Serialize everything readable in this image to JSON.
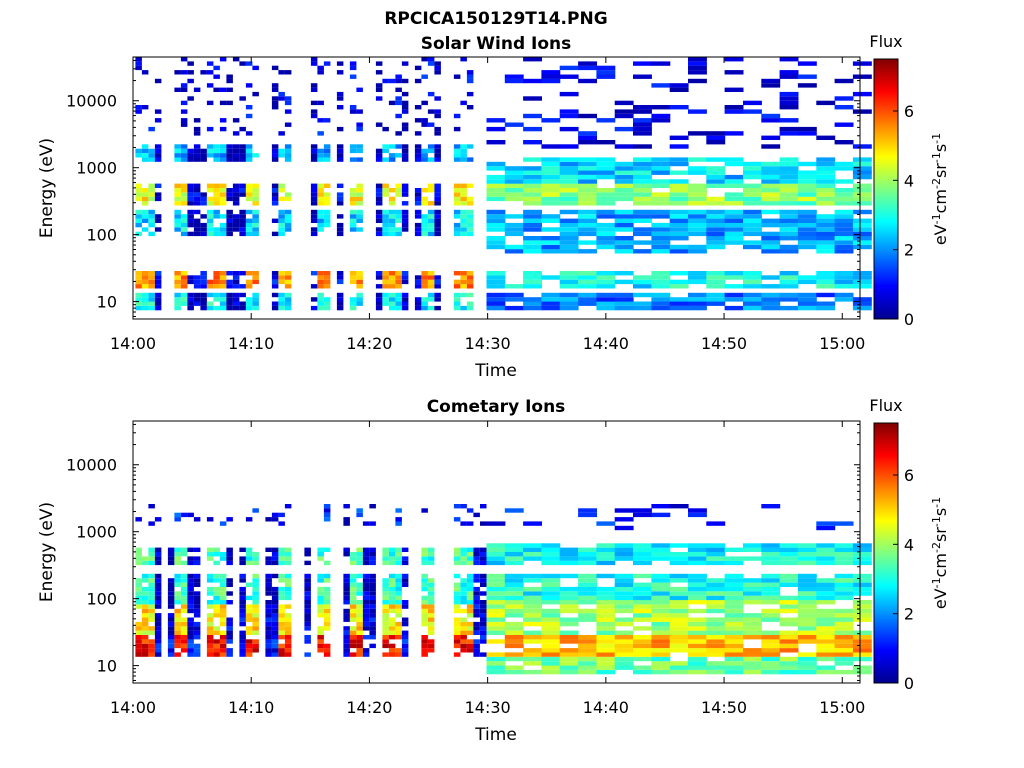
{
  "figure_title": "RPCICA150129T14.PNG",
  "colormap": [
    "#00008f",
    "#0000ff",
    "#0080ff",
    "#00ffff",
    "#80ff80",
    "#ffff00",
    "#ff8000",
    "#ff0000",
    "#800000"
  ],
  "chart_data": [
    {
      "type": "heatmap",
      "title": "Solar Wind Ions",
      "xlabel": "Time",
      "ylabel": "Energy (eV)",
      "x_ticks": [
        "14:00",
        "14:10",
        "14:20",
        "14:30",
        "14:40",
        "14:50",
        "15:00"
      ],
      "x_range_minutes": [
        0,
        61.5
      ],
      "y_scale": "log",
      "y_ticks": [
        10,
        100,
        1000,
        10000
      ],
      "y_tick_labels": [
        "10",
        "100",
        "1000",
        "10000"
      ],
      "y_range": [
        5.5,
        45000
      ],
      "colorbar": {
        "label": "Flux",
        "unit": "eV-1cm-2sr-1s-1",
        "range": [
          0,
          7.5
        ],
        "ticks": [
          "0",
          "2",
          "4",
          "6"
        ]
      },
      "bands_before_1430": [
        {
          "energy": [
            16,
            30
          ],
          "flux": 5.5,
          "intensity": "high"
        },
        {
          "energy": [
            8,
            14
          ],
          "flux": 2.8
        },
        {
          "energy": [
            280,
            600
          ],
          "flux": 4.6
        },
        {
          "energy": [
            100,
            250
          ],
          "flux": 2.6
        },
        {
          "energy": [
            1200,
            2200
          ],
          "flux": 2.3
        },
        {
          "energy": [
            3000,
            45000
          ],
          "flux": 0.8,
          "note": "sparse"
        }
      ],
      "bands_after_1430": [
        {
          "energy": [
            16,
            30
          ],
          "flux": 2.8
        },
        {
          "energy": [
            8,
            14
          ],
          "flux": 1.8
        },
        {
          "energy": [
            280,
            600
          ],
          "flux": 3.8
        },
        {
          "energy": [
            600,
            1400
          ],
          "flux": 2.5
        },
        {
          "energy": [
            50,
            250
          ],
          "flux": 2.2
        },
        {
          "energy": [
            2000,
            45000
          ],
          "flux": 0.7,
          "note": "striped"
        }
      ],
      "grid": false
    },
    {
      "type": "heatmap",
      "title": "Cometary Ions",
      "xlabel": "Time",
      "ylabel": "Energy (eV)",
      "x_ticks": [
        "14:00",
        "14:10",
        "14:20",
        "14:30",
        "14:40",
        "14:50",
        "15:00"
      ],
      "x_range_minutes": [
        0,
        61.5
      ],
      "y_scale": "log",
      "y_ticks": [
        10,
        100,
        1000,
        10000
      ],
      "y_tick_labels": [
        "10",
        "100",
        "1000",
        "10000"
      ],
      "y_range": [
        5.5,
        45000
      ],
      "colorbar": {
        "label": "Flux",
        "unit": "eV-1cm-2sr-1s-1",
        "range": [
          0,
          7.5
        ],
        "ticks": [
          "0",
          "2",
          "4",
          "6"
        ]
      },
      "bands_before_1430": [
        {
          "energy": [
            14,
            30
          ],
          "flux": 6.5,
          "intensity": "high"
        },
        {
          "energy": [
            30,
            80
          ],
          "flux": 4.8
        },
        {
          "energy": [
            80,
            250
          ],
          "flux": 3.2
        },
        {
          "energy": [
            300,
            600
          ],
          "flux": 3.3
        },
        {
          "energy": [
            1200,
            2500
          ],
          "flux": 1.2,
          "note": "sparse"
        }
      ],
      "bands_after_1430": [
        {
          "energy": [
            14,
            30
          ],
          "flux": 5.2
        },
        {
          "energy": [
            8,
            14
          ],
          "flux": 3.6
        },
        {
          "energy": [
            30,
            90
          ],
          "flux": 4.0
        },
        {
          "energy": [
            90,
            250
          ],
          "flux": 3.0
        },
        {
          "energy": [
            300,
            700
          ],
          "flux": 2.8
        },
        {
          "energy": [
            1000,
            2500
          ],
          "flux": 1.0,
          "note": "sparse"
        }
      ],
      "grid": false
    }
  ]
}
